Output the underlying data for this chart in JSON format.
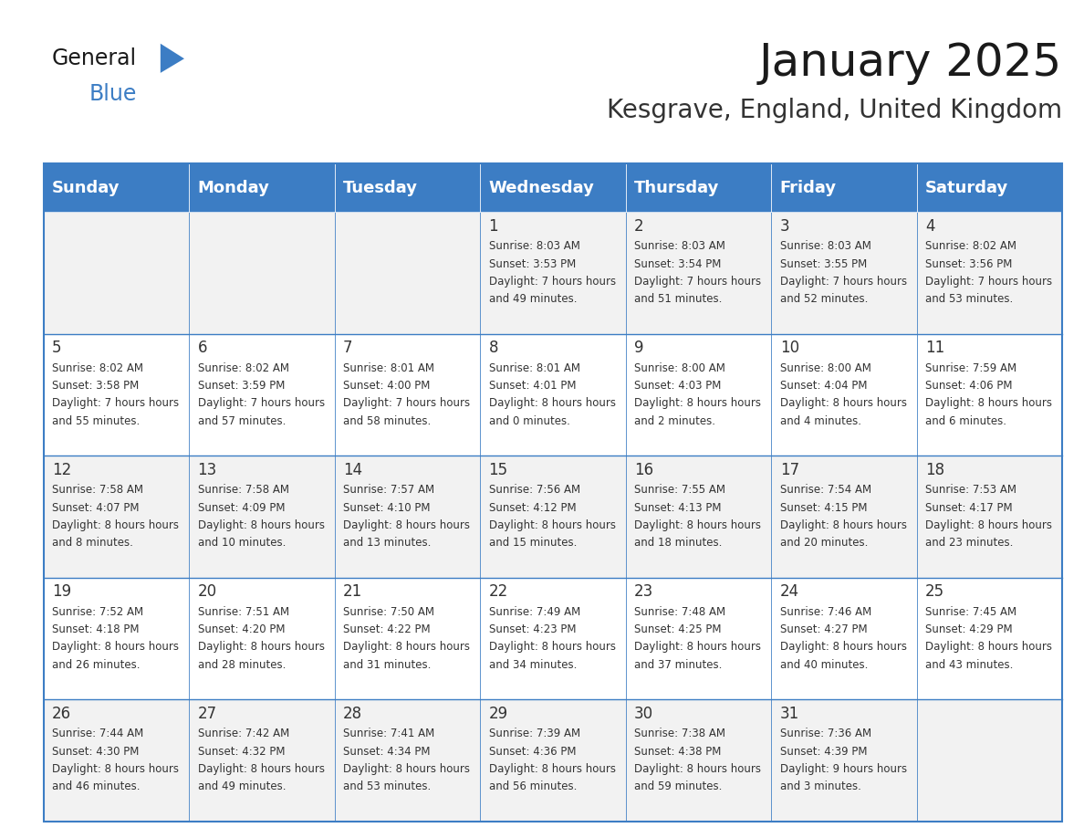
{
  "title": "January 2025",
  "subtitle": "Kesgrave, England, United Kingdom",
  "days_of_week": [
    "Sunday",
    "Monday",
    "Tuesday",
    "Wednesday",
    "Thursday",
    "Friday",
    "Saturday"
  ],
  "header_bg": "#3C7DC4",
  "header_text_color": "#FFFFFF",
  "cell_bg_light": "#F2F2F2",
  "cell_bg_white": "#FFFFFF",
  "border_color": "#3C7DC4",
  "text_color": "#333333",
  "title_color": "#1a1a1a",
  "subtitle_color": "#333333",
  "logo_general_color": "#1a1a1a",
  "logo_blue_color": "#3C7DC4",
  "weeks": [
    [
      {
        "day": null,
        "sunrise": null,
        "sunset": null,
        "daylight": null
      },
      {
        "day": null,
        "sunrise": null,
        "sunset": null,
        "daylight": null
      },
      {
        "day": null,
        "sunrise": null,
        "sunset": null,
        "daylight": null
      },
      {
        "day": 1,
        "sunrise": "8:03 AM",
        "sunset": "3:53 PM",
        "daylight": "7 hours and 49 minutes."
      },
      {
        "day": 2,
        "sunrise": "8:03 AM",
        "sunset": "3:54 PM",
        "daylight": "7 hours and 51 minutes."
      },
      {
        "day": 3,
        "sunrise": "8:03 AM",
        "sunset": "3:55 PM",
        "daylight": "7 hours and 52 minutes."
      },
      {
        "day": 4,
        "sunrise": "8:02 AM",
        "sunset": "3:56 PM",
        "daylight": "7 hours and 53 minutes."
      }
    ],
    [
      {
        "day": 5,
        "sunrise": "8:02 AM",
        "sunset": "3:58 PM",
        "daylight": "7 hours and 55 minutes."
      },
      {
        "day": 6,
        "sunrise": "8:02 AM",
        "sunset": "3:59 PM",
        "daylight": "7 hours and 57 minutes."
      },
      {
        "day": 7,
        "sunrise": "8:01 AM",
        "sunset": "4:00 PM",
        "daylight": "7 hours and 58 minutes."
      },
      {
        "day": 8,
        "sunrise": "8:01 AM",
        "sunset": "4:01 PM",
        "daylight": "8 hours and 0 minutes."
      },
      {
        "day": 9,
        "sunrise": "8:00 AM",
        "sunset": "4:03 PM",
        "daylight": "8 hours and 2 minutes."
      },
      {
        "day": 10,
        "sunrise": "8:00 AM",
        "sunset": "4:04 PM",
        "daylight": "8 hours and 4 minutes."
      },
      {
        "day": 11,
        "sunrise": "7:59 AM",
        "sunset": "4:06 PM",
        "daylight": "8 hours and 6 minutes."
      }
    ],
    [
      {
        "day": 12,
        "sunrise": "7:58 AM",
        "sunset": "4:07 PM",
        "daylight": "8 hours and 8 minutes."
      },
      {
        "day": 13,
        "sunrise": "7:58 AM",
        "sunset": "4:09 PM",
        "daylight": "8 hours and 10 minutes."
      },
      {
        "day": 14,
        "sunrise": "7:57 AM",
        "sunset": "4:10 PM",
        "daylight": "8 hours and 13 minutes."
      },
      {
        "day": 15,
        "sunrise": "7:56 AM",
        "sunset": "4:12 PM",
        "daylight": "8 hours and 15 minutes."
      },
      {
        "day": 16,
        "sunrise": "7:55 AM",
        "sunset": "4:13 PM",
        "daylight": "8 hours and 18 minutes."
      },
      {
        "day": 17,
        "sunrise": "7:54 AM",
        "sunset": "4:15 PM",
        "daylight": "8 hours and 20 minutes."
      },
      {
        "day": 18,
        "sunrise": "7:53 AM",
        "sunset": "4:17 PM",
        "daylight": "8 hours and 23 minutes."
      }
    ],
    [
      {
        "day": 19,
        "sunrise": "7:52 AM",
        "sunset": "4:18 PM",
        "daylight": "8 hours and 26 minutes."
      },
      {
        "day": 20,
        "sunrise": "7:51 AM",
        "sunset": "4:20 PM",
        "daylight": "8 hours and 28 minutes."
      },
      {
        "day": 21,
        "sunrise": "7:50 AM",
        "sunset": "4:22 PM",
        "daylight": "8 hours and 31 minutes."
      },
      {
        "day": 22,
        "sunrise": "7:49 AM",
        "sunset": "4:23 PM",
        "daylight": "8 hours and 34 minutes."
      },
      {
        "day": 23,
        "sunrise": "7:48 AM",
        "sunset": "4:25 PM",
        "daylight": "8 hours and 37 minutes."
      },
      {
        "day": 24,
        "sunrise": "7:46 AM",
        "sunset": "4:27 PM",
        "daylight": "8 hours and 40 minutes."
      },
      {
        "day": 25,
        "sunrise": "7:45 AM",
        "sunset": "4:29 PM",
        "daylight": "8 hours and 43 minutes."
      }
    ],
    [
      {
        "day": 26,
        "sunrise": "7:44 AM",
        "sunset": "4:30 PM",
        "daylight": "8 hours and 46 minutes."
      },
      {
        "day": 27,
        "sunrise": "7:42 AM",
        "sunset": "4:32 PM",
        "daylight": "8 hours and 49 minutes."
      },
      {
        "day": 28,
        "sunrise": "7:41 AM",
        "sunset": "4:34 PM",
        "daylight": "8 hours and 53 minutes."
      },
      {
        "day": 29,
        "sunrise": "7:39 AM",
        "sunset": "4:36 PM",
        "daylight": "8 hours and 56 minutes."
      },
      {
        "day": 30,
        "sunrise": "7:38 AM",
        "sunset": "4:38 PM",
        "daylight": "8 hours and 59 minutes."
      },
      {
        "day": 31,
        "sunrise": "7:36 AM",
        "sunset": "4:39 PM",
        "daylight": "9 hours and 3 minutes."
      },
      {
        "day": null,
        "sunrise": null,
        "sunset": null,
        "daylight": null
      }
    ]
  ],
  "figsize": [
    11.88,
    9.18
  ],
  "dpi": 100
}
